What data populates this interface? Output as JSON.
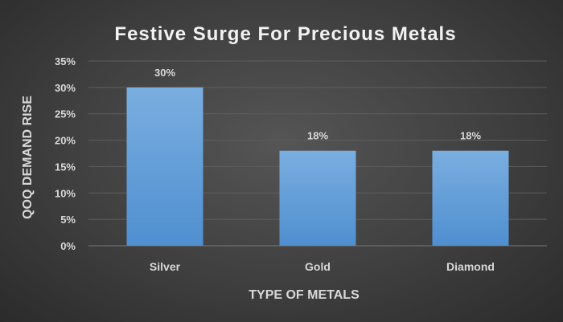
{
  "chart_data": {
    "type": "bar",
    "title": "Festive Surge For Precious Metals",
    "xlabel": "TYPE OF METALS",
    "ylabel": "QOQ DEMAND RISE",
    "categories": [
      "Silver",
      "Gold",
      "Diamond"
    ],
    "values": [
      30,
      18,
      18
    ],
    "data_labels": [
      "30%",
      "18%",
      "18%"
    ],
    "yticks": [
      "0%",
      "5%",
      "10%",
      "15%",
      "20%",
      "25%",
      "30%",
      "35%"
    ],
    "ylim": [
      0,
      35
    ],
    "grid": true,
    "legend": "none",
    "colors": {
      "bar": "#5b9bd5",
      "bar_top": "#79aee0",
      "background": "#404040",
      "text": "#d9d9d9"
    }
  }
}
